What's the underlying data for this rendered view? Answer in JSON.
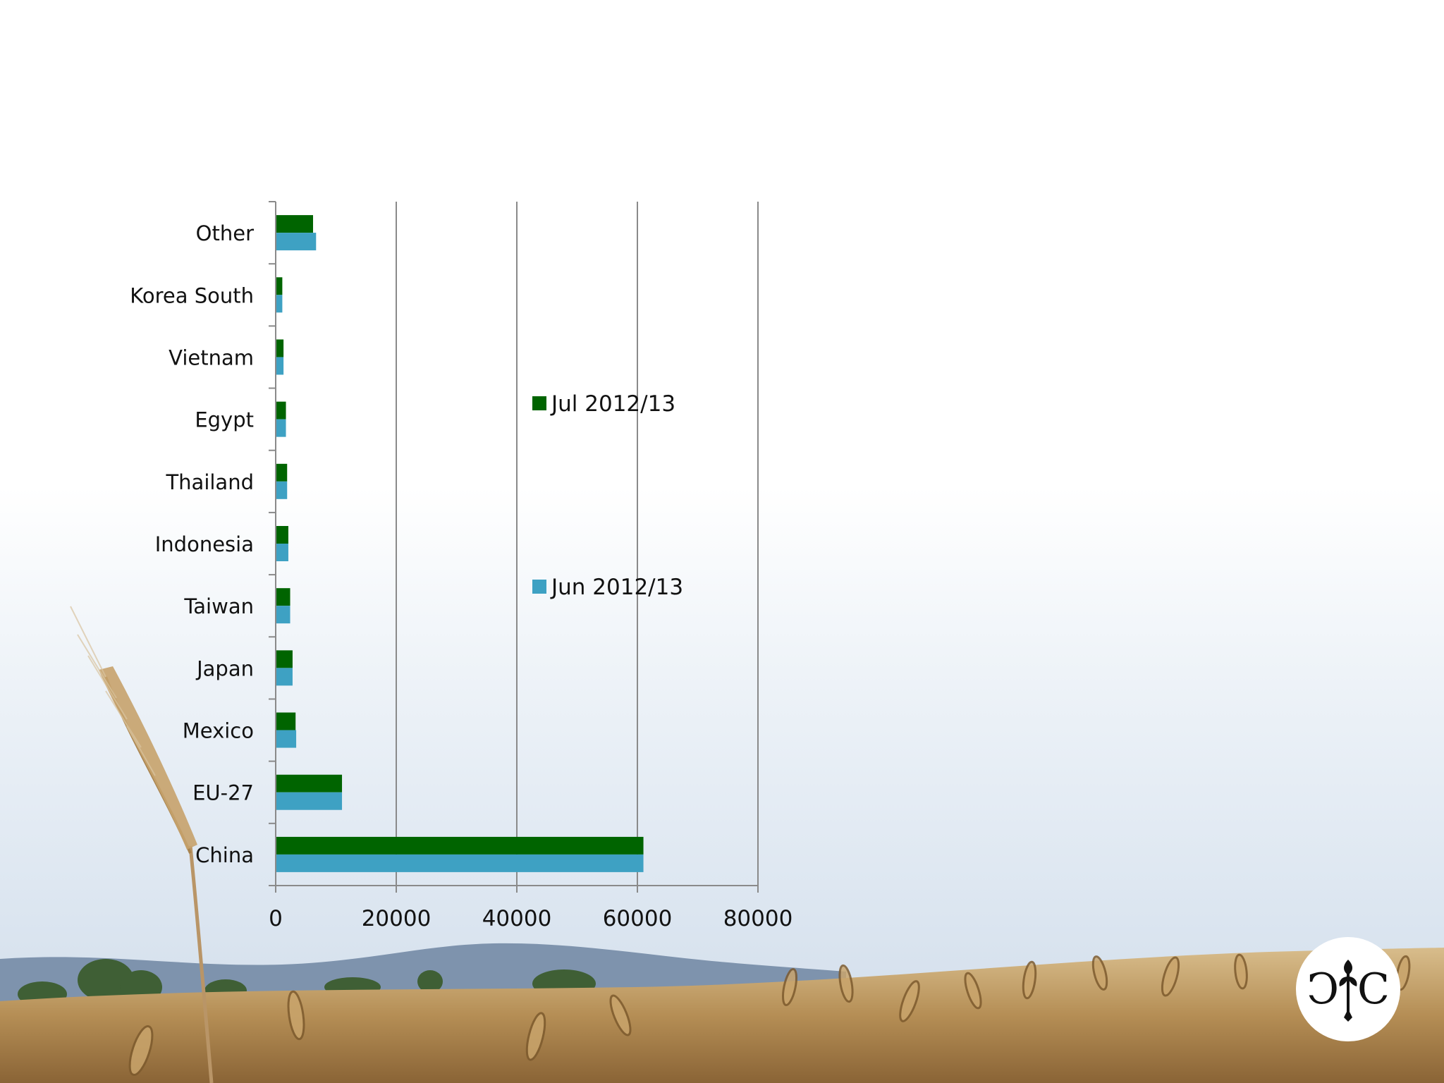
{
  "chart_data": {
    "type": "bar",
    "orientation": "horizontal",
    "title": "",
    "xlabel": "",
    "ylabel": "",
    "categories": [
      "China",
      "EU-27",
      "Mexico",
      "Japan",
      "Taiwan",
      "Indonesia",
      "Thailand",
      "Egypt",
      "Vietnam",
      "Korea South",
      "Other"
    ],
    "series": [
      {
        "name": "Jul 2012/13",
        "color": "#006400",
        "values": [
          61000,
          11000,
          3300,
          2800,
          2400,
          2100,
          1900,
          1700,
          1300,
          1100,
          6200
        ]
      },
      {
        "name": "Jun 2012/13",
        "color": "#3ea1c3",
        "values": [
          61000,
          11000,
          3400,
          2800,
          2400,
          2100,
          1900,
          1700,
          1300,
          1100,
          6700
        ]
      }
    ],
    "xlim": [
      0,
      80000
    ],
    "xticks": [
      "0",
      "20000",
      "40000",
      "60000",
      "80000"
    ],
    "grid": true,
    "legend_position": "inside-center"
  },
  "background": {
    "description_icon": "wheat-field-photo-icon",
    "sky_color": "#dde7f2",
    "wheat_color": "#b8945a",
    "hills_color": "#6f86a3"
  },
  "logo": {
    "icon": "monogram-logo-icon",
    "letters": "CIC"
  }
}
